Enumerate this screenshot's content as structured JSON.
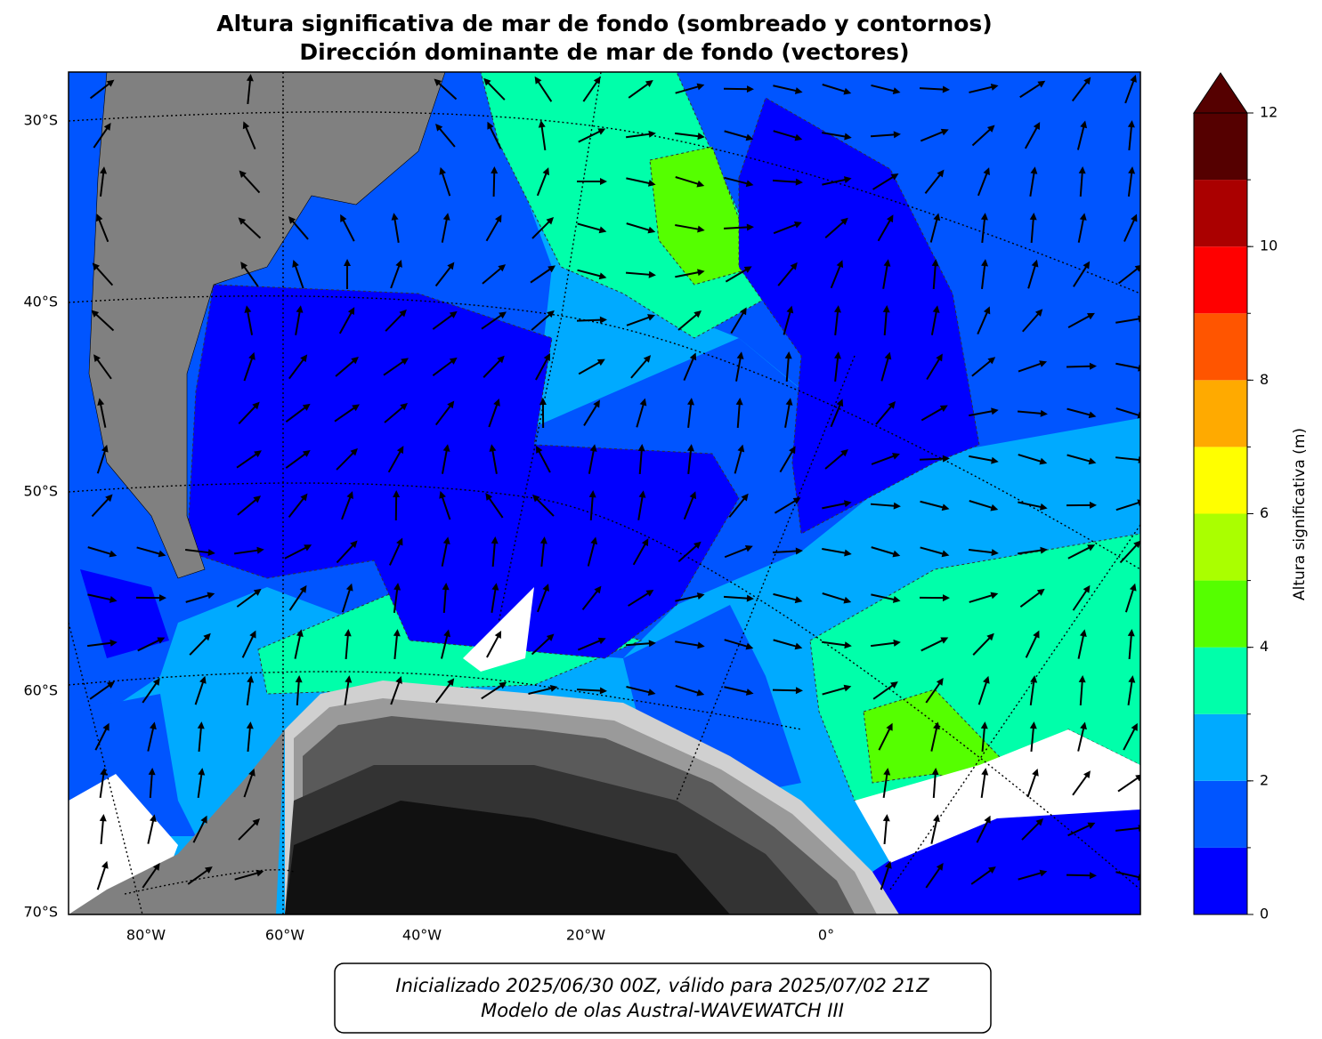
{
  "title": [
    "Altura significativa de mar de fondo (sombreado y contornos)",
    "Dirección dominante de mar de fondo (vectores)"
  ],
  "map": {
    "lat_labels": [
      "30°S",
      "40°S",
      "50°S",
      "60°S",
      "70°S"
    ],
    "lon_labels": [
      "80°W",
      "60°W",
      "40°W",
      "20°W",
      "0°"
    ]
  },
  "colorbar": {
    "label": "Altura significativa (m)",
    "levels": [
      0,
      1,
      2,
      3,
      4,
      5,
      6,
      7,
      8,
      9,
      10,
      11,
      12
    ],
    "colors": [
      "#0000ff",
      "#0055ff",
      "#00aaff",
      "#00ffaa",
      "#55ff00",
      "#aaff00",
      "#ffff00",
      "#ffaa00",
      "#ff5500",
      "#ff0000",
      "#aa0000",
      "#550000"
    ],
    "extend_color": "#550000",
    "lim": [
      0,
      12
    ],
    "ticks": [
      0,
      2,
      4,
      6,
      8,
      10,
      12
    ]
  },
  "footer": [
    "Inicializado 2025/06/30 00Z, válido para 2025/07/02 21Z",
    "Modelo de olas Austral-WAVEWATCH III"
  ]
}
